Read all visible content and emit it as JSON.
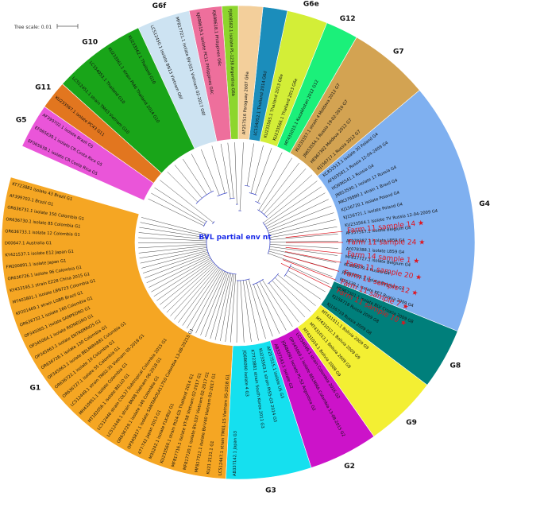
{
  "figure": {
    "title": "BVL partial env nt",
    "tree_scale_label": "Tree scale: 0.01"
  },
  "colors": {
    "G1": "#f5a623",
    "G2": "#cc13c9",
    "G3": "#15e0ef",
    "G8": "#007f7b",
    "G9": "#f3ef33",
    "G4": "#7fb0f0",
    "G7": "#d3a352",
    "G12": "#1bf07a",
    "G6e": "#d3ee37",
    "G6d": "#1b8dbb",
    "G6a": "#f3cf9b",
    "G6b": "#8dd62d",
    "G6c": "#ee6f9c",
    "G6f": "#cde3f2",
    "G10": "#19a519",
    "G11": "#e2761f",
    "G5": "#ea55d9",
    "center_title": "#1a2be8",
    "samples": "#e0141e"
  },
  "groups": [
    {
      "id": "G1",
      "label": "G1",
      "start": 183,
      "end": 286,
      "leaves": [
        "LC512447.1 strain TM01-15 Vietnam 05-2018 G1",
        "KU21 2131.1 G1",
        "MF817722.1 isolate BV-V40 Vietnam 02-2017 G1",
        "MF817720.1 isolate BV-S37 Vietnam 02-2017 G1",
        "MF817716.1 isolate VT-58 Vietnam 02-2017 G1",
        "KU233560.1 strain Pt24-G5 Thailand 2014 G1",
        "M35242.1 isolate FLK-BLV G1",
        "477-T42 Japan 2013 G1",
        "OP345817.1 isolate SANTAROSA11750 Colombia 13-08-20215 G1",
        "OR636729.1 isolate 140 Colombia G1",
        "LC512448.1 strain BN98 Vietnam 06-2018 G1",
        "LC512446 strain COL37 Subtropical Colombia 2015 G1",
        "MT182056.1 isolate BELLO G1",
        "MH410951.1 isolate Colombia G1",
        "LC512449.1 strain TM02-35 Vietnam 05-2018 G1",
        "OR636727.1 isolate 55 Colombia G1",
        "OR636722.1 isolate 10 Colombia G1",
        "OP345063.1 isolate BELMIRA881 Colombia G1",
        "OR636728.1 isolate 130 Colombia G1",
        "OP345063.1 isolate ENTRERRIOS G1",
        "OP345064.1 isolate RIONEGRO G1",
        "OP345065.1 isolate SANPEDRO G1",
        "OR636732.1 isolate 160 Colombia G1",
        "KP201469.1 strain LGBR Brazil G1",
        "MT403801.1 isolate LBN723 Colombia G1",
        "KY433195.1 strain EZ28 China 2015 G1",
        "OR636726.1 isolate 96 Colombia G1",
        "FM200891.1 isolate Japan G1",
        "KY421537.1 isolate E12 Japan G1",
        "D00647.1 Australia G1",
        "OR636733.1 isolate 12 Colombia G1",
        "OR636730.1 isolate 85 Colombia G1",
        "OR636731.1 isolate 150 Colombia G1",
        "AF399703.1 Brazil G1",
        "KT723881 isolate 43 Brazil G1"
      ]
    },
    {
      "id": "G3",
      "label": "G3",
      "start": 162,
      "end": 183,
      "leaves": [
        "AF257515.1 isolate US G3",
        "KU233563.1 strain Pt55-G3 2014 G3",
        "K7723881 strain South Korea 2011 G3",
        "JQ686090 isolate 4 G3",
        "AB337142.1 Japan G3"
      ]
    },
    {
      "id": "G2",
      "label": "G2",
      "start": 145,
      "end": 162,
      "leaves": [
        "LC154049.1 strain Colombia 2016 G2",
        "OP345060.1 isolate BELMIRA Colombia 13-08-2015 G2",
        "JQ686091 isolate PL-S2 Argentina G2",
        "AB337143.1 isolate G2"
      ]
    },
    {
      "id": "G9",
      "label": "G9",
      "start": 127,
      "end": 145,
      "leaves": [
        "MT431011.1 Bolivia 2009 G9",
        "MT431012.1 Bolivia 2009 G9",
        "MT431013.1 Bolivia 2009 G9",
        "MT431014.1 Bolivia 2009 G9"
      ]
    },
    {
      "id": "G8",
      "label": "G8",
      "start": 112,
      "end": 127,
      "leaves": [
        "HE967301.1 isolate BLV Croatia 2009 G8",
        "KJ156718 Russia 2009 G8",
        "KJ156719 Russia 2009 G8"
      ]
    },
    {
      "id": "G4",
      "label": "G4",
      "start": 50,
      "end": 112,
      "leaves": [
        "KC852513.1 isolate 30 Poland G4",
        "AF503581.1 Russia 12-04-2009 G4",
        "HQ696541.1 Russia G4",
        "JN653590.1 isolate 17 Russia G4",
        "MK376890.1 strain 1 Brazil G4",
        "KJ156720.1 isolate Poland G4",
        "KJ156721.1 isolate Poland G4",
        "KU233564.1 isolate 7V Russia 12-04-2009 G4",
        "AF257517.1 isolate Belgium G4",
        "AY078387.1 isolate LB59 G4",
        "AY078388.1 isolate LB59 G4",
        "MF817717.1 isolate Belgium G4",
        "KC886579.1 Russia G4",
        "JQ686063.1 isolate Belgium G4",
        "M35238.1 isolate KE7 Russia 2009 G4"
      ]
    },
    {
      "id": "G7",
      "label": "G7",
      "start": 30,
      "end": 50,
      "leaves": [
        "KU233557.1 strain 4 Moldova 2012 G7",
        "JN653554.1 Russia 19-02-2010 G7",
        "HE967302 Moldova 2012 G7",
        "KJ156717.1 Russia 2012 G7"
      ]
    },
    {
      "id": "G12",
      "label": "G12",
      "start": 22,
      "end": 30,
      "leaves": [
        "MT431015.1 Kazakhstan 2012 G12"
      ]
    },
    {
      "id": "G6e",
      "label": "G6e",
      "start": 12,
      "end": 22,
      "leaves": [
        "KU233565.1 Thailand 2013 G6e",
        "KU233566.1 Thailand 2013 G6e"
      ]
    },
    {
      "id": "G6d",
      "label": "G6d",
      "start": 6,
      "end": 12,
      "leaves": [
        "LC154052.1 Thailand 2014 G6d"
      ]
    },
    {
      "id": "G6a",
      "label": "G6a",
      "start": 0,
      "end": 6,
      "leaves": [
        "AF257516 Paraguay 2007 G6a"
      ]
    },
    {
      "id": "G6b",
      "label": "G6b",
      "start": -4,
      "end": 0,
      "leaves": [
        "FJ808582.1 isolate PL-1238 Argentina G6b"
      ]
    },
    {
      "id": "G6c",
      "label": "G6c",
      "start": -12,
      "end": -4,
      "leaves": [
        "KJ698619.1 isolate PC11 Philippines G6c",
        "KJ698618.1 Philippines G6c"
      ]
    },
    {
      "id": "G6f",
      "label": "G6f",
      "start": -25,
      "end": -12,
      "leaves": [
        "LC512450.1 isolate BN13 Vietnam G6f",
        "MF817721.1 isolate BV-S51 Vietnam 02-2017 G6f"
      ]
    },
    {
      "id": "G10",
      "label": "G10",
      "start": -48,
      "end": -25,
      "leaves": [
        "LC512451.1 strain TM03 Vietnam G10",
        "LC154053.1 Thailand G10",
        "KU233561.1 strain Pt46 Thailand 2014 G10",
        "KU233562.1 Thailand G10"
      ]
    },
    {
      "id": "G11",
      "label": "G11",
      "start": -55,
      "end": -48,
      "leaves": [
        "KU233567.1 isolate PC43 G11"
      ]
    },
    {
      "id": "G5",
      "label": "G5",
      "start": -66,
      "end": -55,
      "leaves": [
        "EF065638.1 isolate CR Costa Rica G5",
        "EF065639.1 isolate CR Costa Rica G5",
        "AF399702.1 isolate Brazil G5"
      ]
    }
  ],
  "samples": [
    "Farm 11 sample 14",
    "Farm 11 sample 24",
    "Farm 14 sample 1",
    "Farm 11 sample 20",
    "Farm 11 sample 12",
    "Farm 11 sample 7",
    "Farm 11 sample 10"
  ],
  "sample_marker": "★"
}
